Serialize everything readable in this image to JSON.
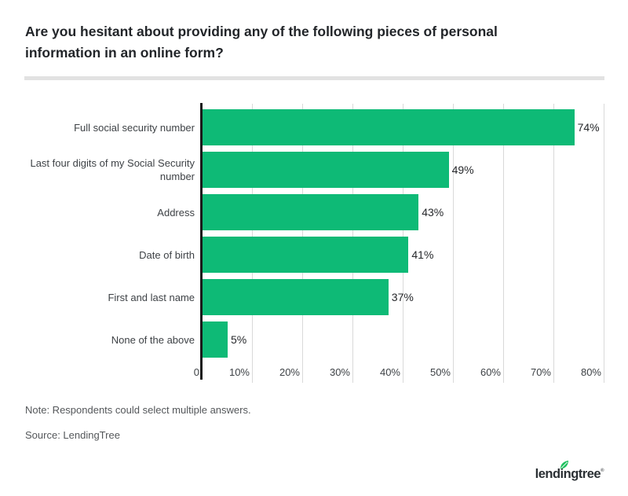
{
  "title": "Are you hesitant about providing any of the following pieces of personal\ninformation in an online form?",
  "note": "Note: Respondents could select multiple answers.",
  "source": "Source: LendingTree",
  "logo": {
    "text": "lendingtree",
    "registered": "®"
  },
  "colors": {
    "bar": "#0eba76",
    "axis": "#1a1a1a",
    "gridline": "#d9d9d9",
    "title_text": "#222529",
    "label_text": "#3e4246",
    "note_text": "#54575a",
    "divider": "#e2e2e2",
    "logo_text": "#2b3034",
    "leaf": "#1fc15f"
  },
  "chart_data": {
    "type": "bar",
    "orientation": "horizontal",
    "title": "Are you hesitant about providing any of the following pieces of personal information in an online form?",
    "categories": [
      "Full social security number",
      "Last four digits of my Social Security\nnumber",
      "Address",
      "Date of birth",
      "First and last name",
      "None of the above"
    ],
    "values": [
      74,
      49,
      43,
      41,
      37,
      5
    ],
    "data_labels": [
      "74%",
      "49%",
      "43%",
      "41%",
      "37%",
      "5%"
    ],
    "x_tick_labels": [
      "0",
      "10%",
      "20%",
      "30%",
      "40%",
      "50%",
      "60%",
      "70%",
      "80%"
    ],
    "xlim": [
      0,
      80
    ],
    "xlabel": "",
    "ylabel": "",
    "grid": "vertical",
    "legend": "none"
  }
}
